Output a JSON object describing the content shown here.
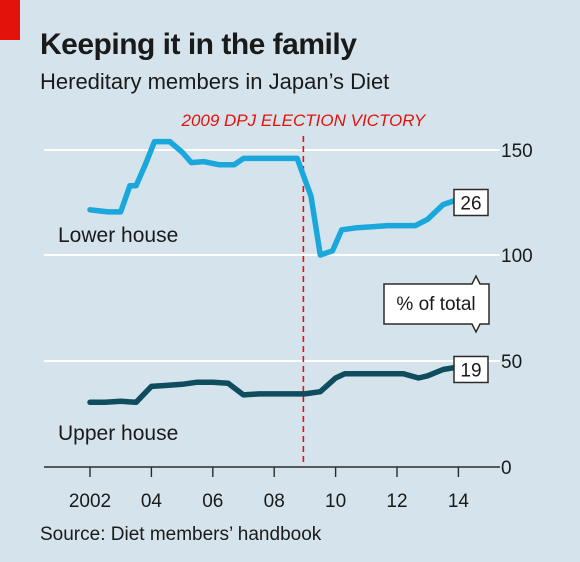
{
  "header": {
    "title": "Keeping it in the family",
    "subtitle": "Hereditary members in Japan’s Diet"
  },
  "footer": {
    "source": "Source: Diet members’ handbook"
  },
  "annotation": {
    "event_label": "2009 DPJ ELECTION VICTORY"
  },
  "colors": {
    "lower_house": "#1aa7dc",
    "upper_house": "#0f4c5e",
    "event_line": "#e3120b",
    "background": "#d5e4ec"
  },
  "chart_data": [
    {
      "type": "line",
      "xlim": [
        2001.5,
        2015.5
      ],
      "x_ticks": [
        2002,
        2004,
        2006,
        2008,
        2010,
        2012,
        2014
      ],
      "x_tick_labels": [
        "2002",
        "04",
        "06",
        "08",
        "10",
        "12",
        "14"
      ],
      "event_x": 2008.95,
      "panels": [
        {
          "ylim": [
            100,
            150
          ],
          "y_ticks": [
            100,
            150
          ],
          "y_tick_labels": [
            "100",
            "150"
          ],
          "series": [
            {
              "name": "Lower house",
              "end_label": "26",
              "x": [
                2002.0,
                2002.3,
                2002.6,
                2003.0,
                2003.3,
                2003.5,
                2003.8,
                2004.1,
                2004.6,
                2005.0,
                2005.3,
                2005.7,
                2006.2,
                2006.7,
                2007.0,
                2007.5,
                2008.0,
                2008.5,
                2008.75,
                2009.2,
                2009.5,
                2009.9,
                2010.2,
                2010.7,
                2011.2,
                2011.7,
                2012.2,
                2012.6,
                2013.0,
                2013.5,
                2013.9,
                2014.3,
                2014.6
              ],
              "values": [
                121.5,
                121.0,
                120.5,
                120.5,
                133,
                133,
                143,
                154,
                154,
                149,
                144,
                144.5,
                143,
                143,
                146,
                146,
                146,
                146,
                146,
                128,
                100,
                102,
                112,
                113,
                113.5,
                114,
                114,
                114,
                117,
                124,
                126,
                126,
                125
              ]
            }
          ]
        },
        {
          "ylim": [
            0,
            50
          ],
          "y_ticks": [
            0,
            50
          ],
          "y_tick_labels": [
            "0",
            "50"
          ],
          "series": [
            {
              "name": "Upper house",
              "end_label": "19",
              "x": [
                2002.0,
                2002.5,
                2003.0,
                2003.5,
                2004.0,
                2004.5,
                2005.0,
                2005.5,
                2006.0,
                2006.5,
                2007.0,
                2007.5,
                2008.0,
                2008.5,
                2009.0,
                2009.5,
                2010.0,
                2010.3,
                2010.8,
                2011.3,
                2011.7,
                2012.2,
                2012.7,
                2013.0,
                2013.5,
                2013.9,
                2014.2,
                2014.6
              ],
              "values": [
                30.5,
                30.5,
                31,
                30.5,
                38,
                38.5,
                39,
                40,
                40,
                39.5,
                34,
                34.5,
                34.5,
                34.5,
                34.5,
                35.5,
                42,
                44,
                44,
                44,
                44,
                44,
                42,
                43,
                46,
                47,
                47,
                46
              ]
            }
          ]
        }
      ],
      "axis_note": "% of total"
    }
  ]
}
